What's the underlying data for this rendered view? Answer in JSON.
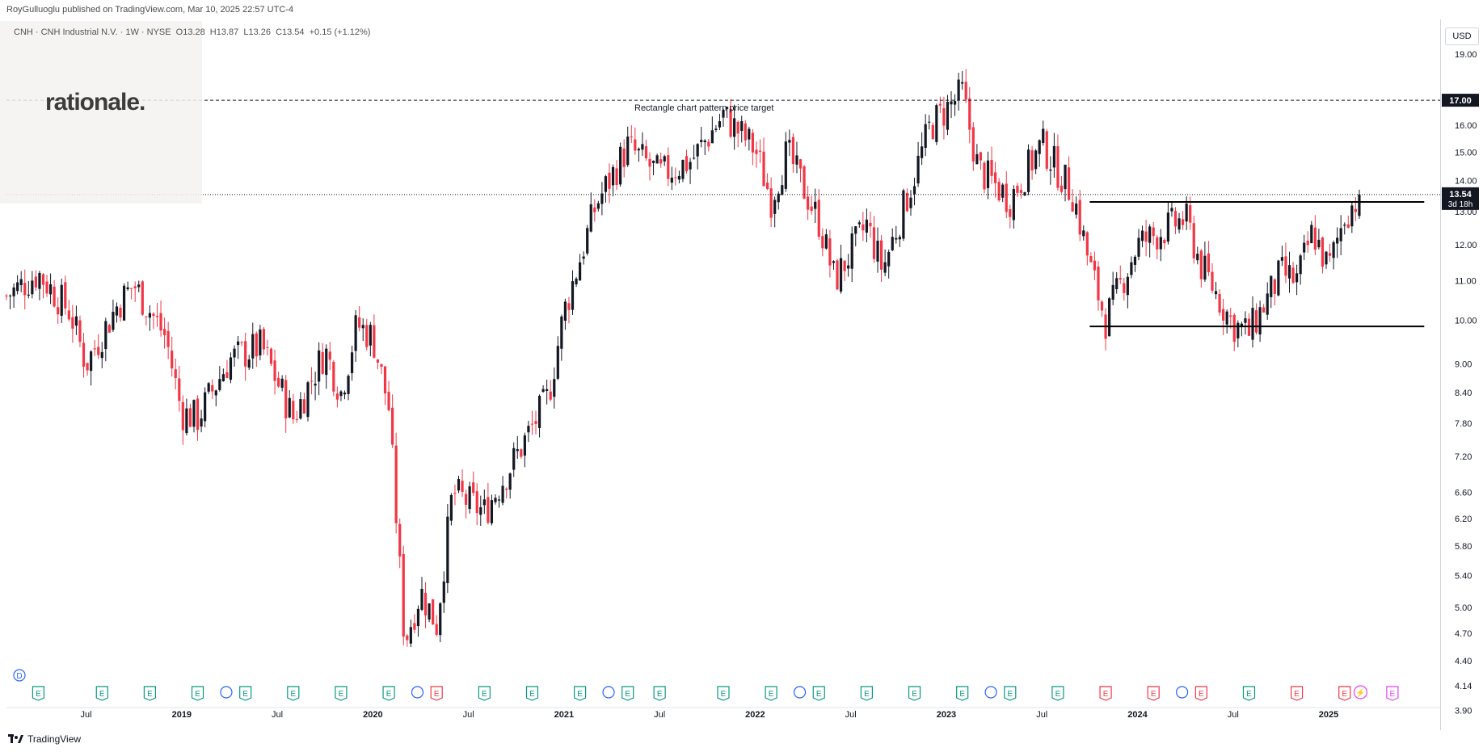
{
  "header": {
    "publisher": "RoyGulluoglu published on TradingView.com, Mar 10, 2025 22:57 UTC-4"
  },
  "symbol": {
    "ticker": "CNH · CNH Industrial N.V. · 1W · NYSE",
    "open": "O13.28",
    "high": "H13.87",
    "low": "L13.26",
    "close": "C13.54",
    "change": "+0.15 (+1.12%)"
  },
  "watermark": {
    "text": "rationale."
  },
  "currency": "USD",
  "footer": {
    "brand": "TradingView"
  },
  "colors": {
    "up": "#131722",
    "down": "#f23645",
    "event_green": "#089981",
    "event_red": "#f23645",
    "event_blue": "#2962ff",
    "event_purple": "#e040fb"
  },
  "chart_data": {
    "type": "candlestick",
    "title": "",
    "y_scale": "log",
    "ylim": [
      3.8,
      20.5
    ],
    "y_ticks": [
      "19.00",
      "17.00",
      "16.00",
      "15.00",
      "14.00",
      "13.00",
      "12.00",
      "11.00",
      "10.00",
      "9.00",
      "8.40",
      "7.80",
      "7.20",
      "6.60",
      "6.20",
      "5.80",
      "5.40",
      "5.00",
      "4.70",
      "4.40",
      "4.14",
      "3.90"
    ],
    "x_ticks": [
      "Jul",
      "2019",
      "Jul",
      "2020",
      "Jul",
      "2021",
      "Jul",
      "2022",
      "Jul",
      "2023",
      "Jul",
      "2024",
      "Jul",
      "2025"
    ],
    "x_range": [
      "2018-02",
      "2025-08"
    ],
    "current_price": {
      "value": 13.54,
      "label": "13.54",
      "countdown": "3d 18h"
    },
    "target_line": {
      "value": 17.0,
      "label": "17.00",
      "annotation": "Rectangle chart pattern price target"
    },
    "rectangle_pattern": {
      "top": 13.3,
      "bottom": 9.85,
      "start": "2023-10",
      "end": "2025-07"
    },
    "price_path": [
      [
        "2018-02",
        10.6
      ],
      [
        "2018-04",
        11.2
      ],
      [
        "2018-06",
        10.2
      ],
      [
        "2018-07",
        9.0
      ],
      [
        "2018-09",
        10.4
      ],
      [
        "2018-10",
        10.9
      ],
      [
        "2018-12",
        9.6
      ],
      [
        "2019-01",
        8.0
      ],
      [
        "2019-02",
        7.9
      ],
      [
        "2019-04",
        9.1
      ],
      [
        "2019-06",
        9.4
      ],
      [
        "2019-08",
        7.9
      ],
      [
        "2019-10",
        9.3
      ],
      [
        "2019-11",
        8.4
      ],
      [
        "2019-12",
        9.9
      ],
      [
        "2020-01",
        9.6
      ],
      [
        "2020-02",
        8.1
      ],
      [
        "2020-03",
        4.6
      ],
      [
        "2020-04",
        5.2
      ],
      [
        "2020-05",
        4.8
      ],
      [
        "2020-06",
        6.6
      ],
      [
        "2020-08",
        6.3
      ],
      [
        "2020-10",
        7.2
      ],
      [
        "2020-12",
        8.3
      ],
      [
        "2021-01",
        10.2
      ],
      [
        "2021-03",
        13.2
      ],
      [
        "2021-05",
        15.2
      ],
      [
        "2021-07",
        14.2
      ],
      [
        "2021-09",
        14.7
      ],
      [
        "2021-11",
        16.4
      ],
      [
        "2022-01",
        15.1
      ],
      [
        "2022-02",
        13.4
      ],
      [
        "2022-03",
        15.0
      ],
      [
        "2022-05",
        12.7
      ],
      [
        "2022-06",
        11.0
      ],
      [
        "2022-08",
        12.6
      ],
      [
        "2022-09",
        11.3
      ],
      [
        "2022-11",
        14.2
      ],
      [
        "2022-12",
        16.0
      ],
      [
        "2023-02",
        17.3
      ],
      [
        "2023-03",
        14.4
      ],
      [
        "2023-05",
        13.4
      ],
      [
        "2023-07",
        15.3
      ],
      [
        "2023-09",
        13.5
      ],
      [
        "2023-10",
        11.4
      ],
      [
        "2023-11",
        10.0
      ],
      [
        "2024-01",
        12.0
      ],
      [
        "2024-04",
        12.8
      ],
      [
        "2024-05",
        11.4
      ],
      [
        "2024-07",
        9.9
      ],
      [
        "2024-08",
        9.7
      ],
      [
        "2024-10",
        11.2
      ],
      [
        "2024-11",
        11.0
      ],
      [
        "2024-12",
        12.4
      ],
      [
        "2025-01",
        11.3
      ],
      [
        "2025-02",
        12.9
      ],
      [
        "2025-03",
        13.54
      ]
    ],
    "events": [
      {
        "t": "2018-04",
        "k": "E",
        "c": "green"
      },
      {
        "t": "2018-08",
        "k": "E",
        "c": "green"
      },
      {
        "t": "2018-11",
        "k": "E",
        "c": "green"
      },
      {
        "t": "2019-02",
        "k": "E",
        "c": "green"
      },
      {
        "t": "2019-04",
        "k": "D",
        "c": "blue"
      },
      {
        "t": "2019-05",
        "k": "E",
        "c": "green"
      },
      {
        "t": "2019-08",
        "k": "E",
        "c": "green"
      },
      {
        "t": "2019-11",
        "k": "E",
        "c": "green"
      },
      {
        "t": "2020-02",
        "k": "E",
        "c": "green"
      },
      {
        "t": "2020-04",
        "k": "D",
        "c": "blue"
      },
      {
        "t": "2020-05",
        "k": "E",
        "c": "red"
      },
      {
        "t": "2020-08",
        "k": "E",
        "c": "green"
      },
      {
        "t": "2020-11",
        "k": "E",
        "c": "green"
      },
      {
        "t": "2021-02",
        "k": "E",
        "c": "green"
      },
      {
        "t": "2021-04",
        "k": "D",
        "c": "blue"
      },
      {
        "t": "2021-05",
        "k": "E",
        "c": "green"
      },
      {
        "t": "2021-07",
        "k": "E",
        "c": "green"
      },
      {
        "t": "2021-11",
        "k": "E",
        "c": "green"
      },
      {
        "t": "2022-02",
        "k": "E",
        "c": "green"
      },
      {
        "t": "2022-04",
        "k": "D",
        "c": "blue"
      },
      {
        "t": "2022-05",
        "k": "E",
        "c": "green"
      },
      {
        "t": "2022-08",
        "k": "E",
        "c": "green"
      },
      {
        "t": "2022-11",
        "k": "E",
        "c": "green"
      },
      {
        "t": "2023-02",
        "k": "E",
        "c": "green"
      },
      {
        "t": "2023-04",
        "k": "D",
        "c": "blue"
      },
      {
        "t": "2023-05",
        "k": "E",
        "c": "green"
      },
      {
        "t": "2023-08",
        "k": "E",
        "c": "green"
      },
      {
        "t": "2023-11",
        "k": "E",
        "c": "red"
      },
      {
        "t": "2024-02",
        "k": "E",
        "c": "red"
      },
      {
        "t": "2024-04",
        "k": "D",
        "c": "blue"
      },
      {
        "t": "2024-05",
        "k": "E",
        "c": "red"
      },
      {
        "t": "2024-08",
        "k": "E",
        "c": "green"
      },
      {
        "t": "2024-11",
        "k": "E",
        "c": "red"
      },
      {
        "t": "2025-02",
        "k": "E",
        "c": "red"
      },
      {
        "t": "2025-03",
        "k": "S",
        "c": "purple"
      },
      {
        "t": "2025-05",
        "k": "E",
        "c": "purple"
      }
    ],
    "dividend_marker": {
      "t": "2018-02",
      "k": "D"
    }
  }
}
